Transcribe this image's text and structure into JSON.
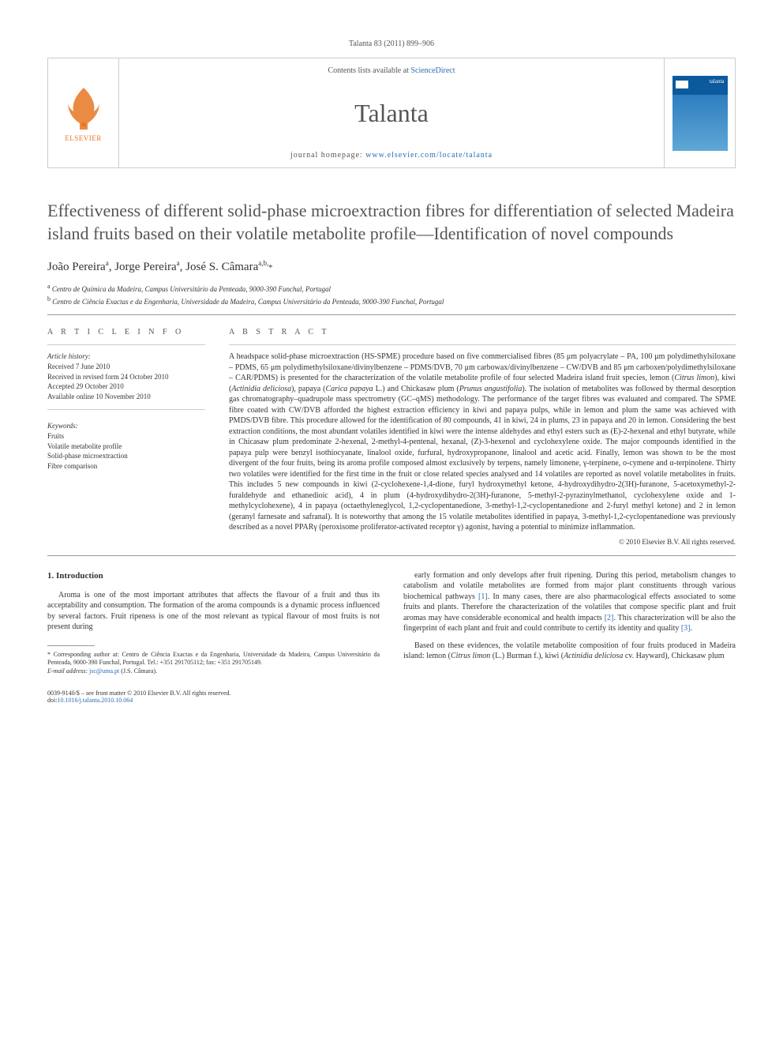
{
  "citation": "Talanta 83 (2011) 899–906",
  "header": {
    "contents_prefix": "Contents lists available at ",
    "contents_link": "ScienceDirect",
    "journal": "Talanta",
    "homepage_prefix": "journal homepage: ",
    "homepage_url": "www.elsevier.com/locate/talanta",
    "elsevier_label": "ELSEVIER",
    "cover_label": "talanta"
  },
  "title": "Effectiveness of different solid-phase microextraction fibres for differentiation of selected Madeira island fruits based on their volatile metabolite profile—Identification of novel compounds",
  "authors_html": "João Pereira<sup>a</sup>, Jorge Pereira<sup>a</sup>, José S. Câmara<sup>a,b,</sup><span class='corr'>*</span>",
  "affiliations": [
    {
      "sup": "a",
      "text": "Centro de Química da Madeira, Campus Universitário da Penteada, 9000-390 Funchal, Portugal"
    },
    {
      "sup": "b",
      "text": "Centro de Ciência Exactas e da Engenharia, Universidade da Madeira, Campus Universitário da Penteada, 9000-390 Funchal, Portugal"
    }
  ],
  "info_heading": "A R T I C L E   I N F O",
  "abstract_heading": "A B S T R A C T",
  "history": {
    "label": "Article history:",
    "lines": [
      "Received 7 June 2010",
      "Received in revised form 24 October 2010",
      "Accepted 29 October 2010",
      "Available online 10 November 2010"
    ]
  },
  "keywords": {
    "label": "Keywords:",
    "items": [
      "Fruits",
      "Volatile metabolite profile",
      "Solid-phase microextraction",
      "Fibre comparison"
    ]
  },
  "abstract": "A headspace solid-phase microextraction (HS-SPME) procedure based on five commercialised fibres (85 μm polyacrylate – PA, 100 μm polydimethylsiloxane – PDMS, 65 μm polydimethylsiloxane/divinylbenzene – PDMS/DVB, 70 μm carbowax/divinylbenzene – CW/DVB and 85 μm carboxen/polydimethylsiloxane – CAR/PDMS) is presented for the characterization of the volatile metabolite profile of four selected Madeira island fruit species, lemon (<i>Citrus limon</i>), kiwi (<i>Actinidia deliciosa</i>), papaya (<i>Carica papaya</i> L.) and Chickasaw plum (<i>Prunus angustifolia</i>). The isolation of metabolites was followed by thermal desorption gas chromatography–quadrupole mass spectrometry (GC–qMS) methodology. The performance of the target fibres was evaluated and compared. The SPME fibre coated with CW/DVB afforded the highest extraction efficiency in kiwi and papaya pulps, while in lemon and plum the same was achieved with PMDS/DVB fibre. This procedure allowed for the identification of 80 compounds, 41 in kiwi, 24 in plums, 23 in papaya and 20 in lemon. Considering the best extraction conditions, the most abundant volatiles identified in kiwi were the intense aldehydes and ethyl esters such as (E)-2-hexenal and ethyl butyrate, while in Chicasaw plum predominate 2-hexenal, 2-methyl-4-pentenal, hexanal, (Z)-3-hexenol and cyclohexylene oxide. The major compounds identified in the papaya pulp were benzyl isothiocyanate, linalool oxide, furfural, hydroxypropanone, linalool and acetic acid. Finally, lemon was shown to be the most divergent of the four fruits, being its aroma profile composed almost exclusively by terpens, namely limonene, γ-terpinene, o-cymene and α-terpinolene. Thirty two volatiles were identified for the first time in the fruit or close related species analysed and 14 volatiles are reported as novel volatile metabolites in fruits. This includes 5 new compounds in kiwi (2-cyclohexene-1,4-dione, furyl hydroxymethyl ketone, 4-hydroxydihydro-2(3H)-furanone, 5-acetoxymethyl-2-furaldehyde and ethanedioic acid), 4 in plum (4-hydroxydihydro-2(3H)-furanone, 5-methyl-2-pyrazinylmethanol, cyclohexylene oxide and 1-methylcyclohexene), 4 in papaya (octaethyleneglycol, 1,2-cyclopentanedione, 3-methyl-1,2-cyclopentanedione and 2-furyl methyl ketone) and 2 in lemon (geranyl farnesate and safranal). It is noteworthy that among the 15 volatile metabolites identified in papaya, 3-methyl-1,2-cyclopentanedione was previously described as a novel PPARγ (peroxisome proliferator-activated receptor γ) agonist, having a potential to minimize inflammation.",
  "copyright": "© 2010 Elsevier B.V. All rights reserved.",
  "body": {
    "heading": "1.  Introduction",
    "col1": "Aroma is one of the most important attributes that affects the flavour of a fruit and thus its acceptability and consumption. The formation of the aroma compounds is a dynamic process influenced by several factors. Fruit ripeness is one of the most relevant as typical flavour of most fruits is not present during",
    "col2_p1": "early formation and only develops after fruit ripening. During this period, metabolism changes to catabolism and volatile metabolites are formed from major plant constituents through various biochemical pathways <a class='ref' href='#'>[1]</a>. In many cases, there are also pharmacological effects associated to some fruits and plants. Therefore the characterization of the volatiles that compose specific plant and fruit aromas may have considerable economical and health impacts <a class='ref' href='#'>[2]</a>. This characterization will be also the fingerprint of each plant and fruit and could contribute to certify its identity and quality <a class='ref' href='#'>[3]</a>.",
    "col2_p2": "Based on these evidences, the volatile metabolite composition of four fruits produced in Madeira island: lemon (<i>Citrus limon</i> (L.) Burman f.), kiwi (<i>Actinidia deliciosa</i> cv. Hayward), Chickasaw plum"
  },
  "footnotes": {
    "corr": "* Corresponding author at: Centro de Ciência Exactas e da Engenharia, Universidade da Madeira, Campus Universitário da Penteada, 9000-390 Funchal, Portugal. Tel.: +351 291705112; fax: +351 291705149.",
    "email_label": "E-mail address: ",
    "email": "jsc@uma.pt",
    "email_owner": " (J.S. Câmara)."
  },
  "footer": {
    "line1": "0039-9140/$ – see front matter © 2010 Elsevier B.V. All rights reserved.",
    "doi_prefix": "doi:",
    "doi": "10.1016/j.talanta.2010.10.064"
  },
  "colors": {
    "link": "#2a6db0",
    "elsevier_orange": "#e87722",
    "text": "#333333",
    "muted": "#555555",
    "rule": "#999999"
  }
}
